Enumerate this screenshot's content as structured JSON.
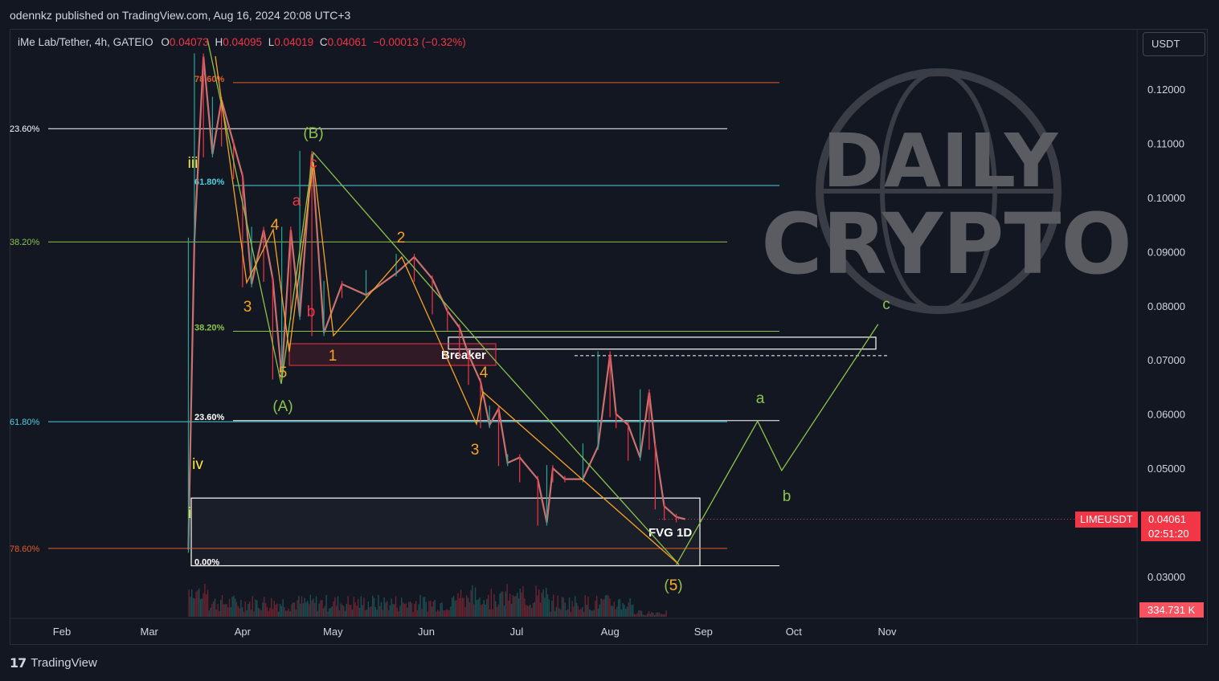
{
  "header": {
    "publish_line": "odennkz published on TradingView.com, Aug 16, 2024 20:08 UTC+3"
  },
  "symbol": {
    "name": "iMe Lab/Tether, 4h, GATEIO",
    "open_label": "O",
    "open": "0.04073",
    "high_label": "H",
    "high": "0.04095",
    "low_label": "L",
    "low": "0.04019",
    "close_label": "C",
    "close": "0.04061",
    "change": "−0.00013 (−0.32%)"
  },
  "currency_button": "USDT",
  "price_tags": {
    "ticker": "LIMEUSDT",
    "last_price": "0.04061",
    "countdown": "02:51:20",
    "volume": "334.731 K"
  },
  "footer": {
    "brand": "TradingView",
    "logo_text": "17"
  },
  "watermark": {
    "line1": "DAILY",
    "line2": "CRYPTO"
  },
  "colors": {
    "background": "#131722",
    "bear": "#f23645",
    "bull": "#26a69a",
    "wave_green": "#8bc34a",
    "wave_orange": "#f7a325",
    "wave_red": "#f23645",
    "fib_cyan": "#4dd0e1",
    "fib_orange": "#e65c2a"
  },
  "chart_data": {
    "type": "candlestick",
    "symbol": "LIMEUSDT",
    "timeframe": "4h",
    "exchange": "GATEIO",
    "x_ticks": [
      "Feb",
      "Mar",
      "Apr",
      "May",
      "Jun",
      "Jul",
      "Aug",
      "Sep",
      "Oct",
      "Nov"
    ],
    "y_ticks": [
      "0.12000",
      "0.11000",
      "0.10000",
      "0.09000",
      "0.08000",
      "0.07000",
      "0.06000",
      "0.05000",
      "0.03000"
    ],
    "y_tick_values": [
      0.12,
      0.11,
      0.1,
      0.09,
      0.08,
      0.07,
      0.06,
      0.05,
      0.03
    ],
    "ylim": [
      0.022,
      0.1275
    ],
    "last_price": 0.04061,
    "price_path": [
      [
        "Mar 14",
        0.035
      ],
      [
        "Mar 16",
        0.092
      ],
      [
        "Mar 19",
        0.126
      ],
      [
        "Mar 22",
        0.108
      ],
      [
        "Mar 25",
        0.118
      ],
      [
        "Mar 29",
        0.11
      ],
      [
        "Apr 1",
        0.104
      ],
      [
        "Apr 4",
        0.084
      ],
      [
        "Apr 8",
        0.094
      ],
      [
        "Apr 11",
        0.085
      ],
      [
        "Apr 14",
        0.067
      ],
      [
        "Apr 17",
        0.094
      ],
      [
        "Apr 20",
        0.078
      ],
      [
        "Apr 24",
        0.108
      ],
      [
        "Apr 28",
        0.075
      ],
      [
        "May 4",
        0.084
      ],
      [
        "May 12",
        0.082
      ],
      [
        "May 22",
        0.086
      ],
      [
        "May 28",
        0.089
      ],
      [
        "Jun 3",
        0.085
      ],
      [
        "Jun 8",
        0.079
      ],
      [
        "Jun 12",
        0.076
      ],
      [
        "Jun 15",
        0.071
      ],
      [
        "Jun 19",
        0.066
      ],
      [
        "Jun 22",
        0.058
      ],
      [
        "Jun 25",
        0.061
      ],
      [
        "Jun 28",
        0.051
      ],
      [
        "Jul 2",
        0.052
      ],
      [
        "Jul 8",
        0.048
      ],
      [
        "Jul 11",
        0.04
      ],
      [
        "Jul 13",
        0.05
      ],
      [
        "Jul 17",
        0.048
      ],
      [
        "Jul 23",
        0.048
      ],
      [
        "Jul 28",
        0.054
      ],
      [
        "Aug 1",
        0.071
      ],
      [
        "Aug 3",
        0.06
      ],
      [
        "Aug 7",
        0.058
      ],
      [
        "Aug 11",
        0.052
      ],
      [
        "Aug 14",
        0.064
      ],
      [
        "Aug 16",
        0.054
      ],
      [
        "Aug 19",
        0.043
      ],
      [
        "Aug 23",
        0.041
      ],
      [
        "Aug 26",
        0.0406
      ]
    ],
    "fib_levels_left": [
      {
        "label": "23.60%",
        "value": 0.1127,
        "color": "#ffffff"
      },
      {
        "label": "38.20%",
        "value": 0.0918,
        "color": "#8bc34a"
      },
      {
        "label": "61.80%",
        "value": 0.0586,
        "color": "#4dd0e1"
      },
      {
        "label": "78.60%",
        "value": 0.0352,
        "color": "#e65c2a"
      }
    ],
    "fib_levels_right": [
      {
        "label": "78.60%",
        "value": 0.1212,
        "color": "#e65c2a"
      },
      {
        "label": "61.80%",
        "value": 0.1022,
        "color": "#4dd0e1"
      },
      {
        "label": "38.20%",
        "value": 0.0753,
        "color": "#8bc34a"
      },
      {
        "label": "23.60%",
        "value": 0.0588,
        "color": "#ffffff"
      },
      {
        "label": "0.00%",
        "value": 0.032,
        "color": "#ffffff"
      }
    ],
    "zones": [
      {
        "label": "Breaker",
        "top": 0.0742,
        "bottom": 0.072,
        "color": "#ffffff"
      },
      {
        "label": "FVG 1D",
        "top": 0.0445,
        "bottom": 0.032,
        "color": "#ffffff"
      }
    ],
    "dashed_level": 0.0708,
    "wave_labels": [
      {
        "text": "(B)",
        "color": "#8bc34a"
      },
      {
        "text": "(A)",
        "color": "#8bc34a"
      },
      {
        "text": "c",
        "color": "#f23645"
      },
      {
        "text": "a",
        "color": "#f23645"
      },
      {
        "text": "b",
        "color": "#f23645"
      },
      {
        "text": "iii",
        "color": "#ffeb3b"
      },
      {
        "text": "iv",
        "color": "#ffeb3b"
      },
      {
        "text": "i",
        "color": "#ffeb3b"
      },
      {
        "text": "1",
        "color": "#f7a325"
      },
      {
        "text": "2",
        "color": "#f7a325"
      },
      {
        "text": "3",
        "color": "#f7a325"
      },
      {
        "text": "4",
        "color": "#f7a325"
      },
      {
        "text": "5",
        "color": "#f7a325"
      },
      {
        "text": "a",
        "color": "#8bc34a"
      },
      {
        "text": "b",
        "color": "#8bc34a"
      },
      {
        "text": "c",
        "color": "#8bc34a"
      },
      {
        "text": "(5)",
        "color": "#8bc34a"
      }
    ],
    "projection": [
      {
        "date": "Aug 23",
        "value": 0.0322
      },
      {
        "date": "Sep 19",
        "value": 0.0587
      },
      {
        "date": "Sep 27",
        "value": 0.0496
      },
      {
        "date": "Oct 29",
        "value": 0.0766
      }
    ],
    "volume_last": "334.731 K"
  }
}
